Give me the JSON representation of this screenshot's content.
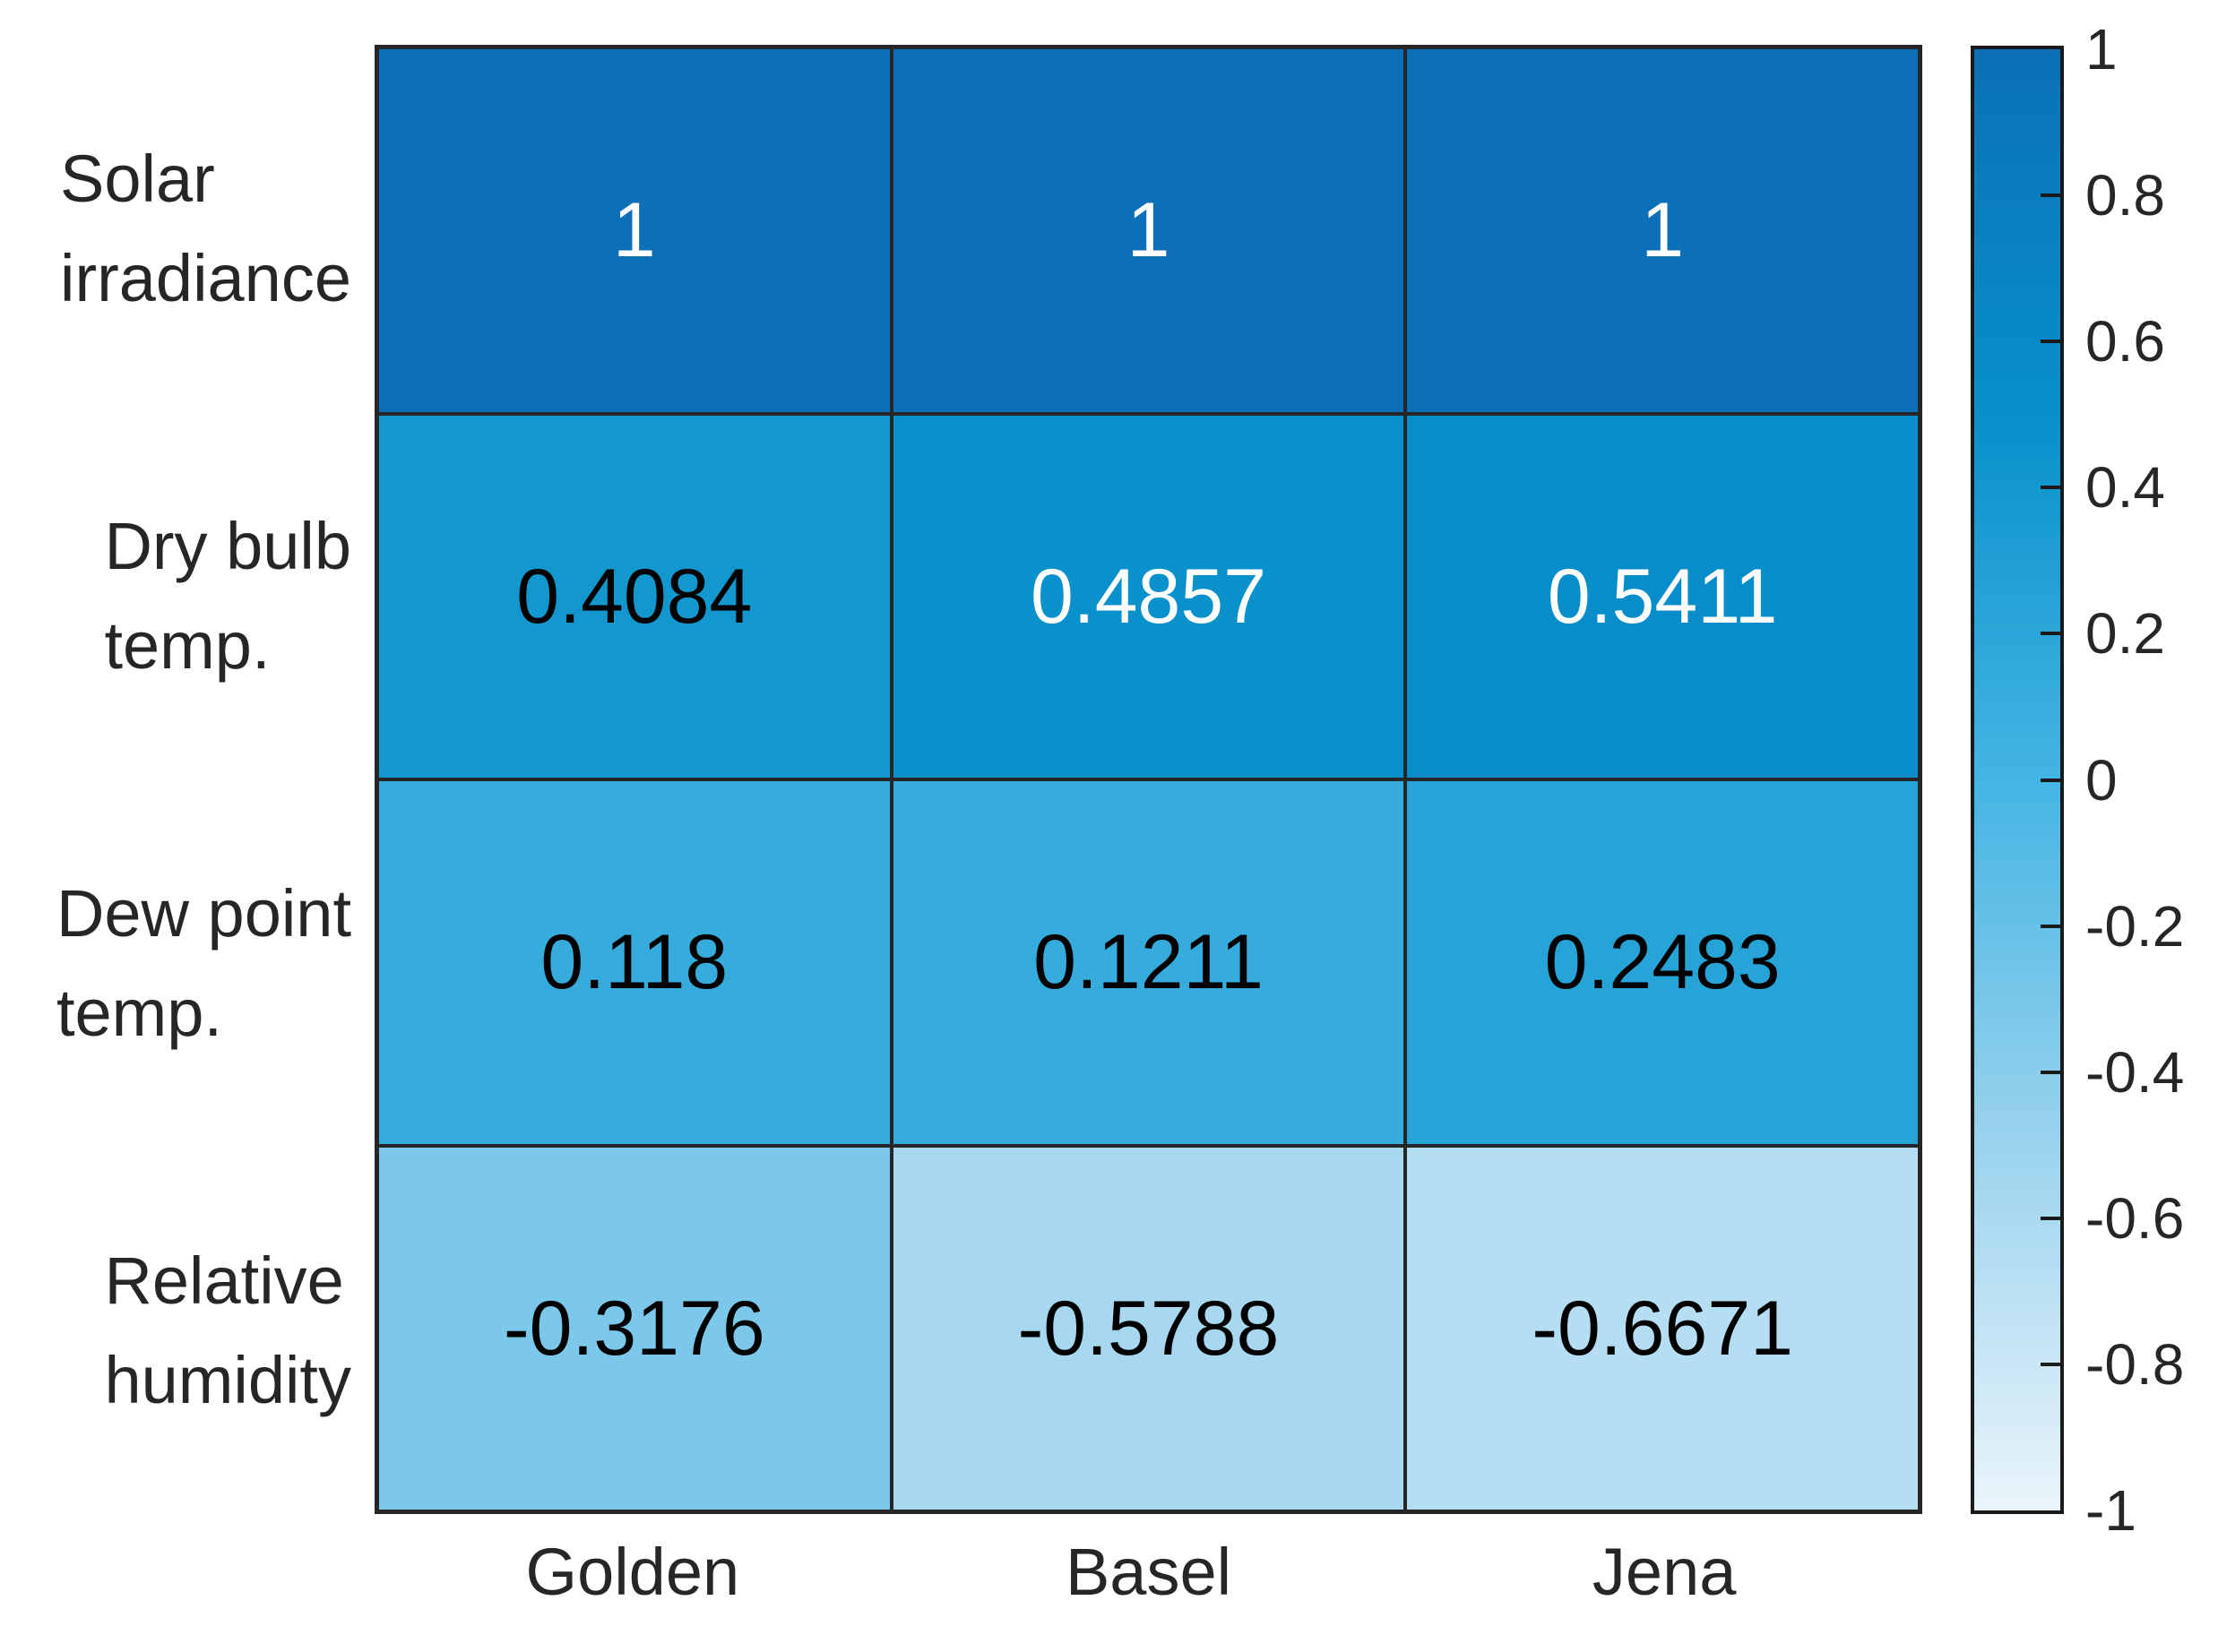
{
  "figure": {
    "background_color": "#ffffff",
    "grid_line_color": "#262626",
    "axis_label_color": "#262626",
    "colorbar_border_color": "#1a1a1a"
  },
  "chart_data": {
    "type": "heatmap",
    "title": "",
    "xlabel": "",
    "ylabel": "",
    "row_labels": [
      [
        "Solar",
        "irradiance"
      ],
      [
        "Dry bulb",
        "temp."
      ],
      [
        "Dew point",
        "temp."
      ],
      [
        "Relative",
        "humidity"
      ]
    ],
    "col_labels": [
      "Golden",
      "Basel",
      "Jena"
    ],
    "values": [
      [
        1,
        1,
        1
      ],
      [
        0.4084,
        0.4857,
        0.5411
      ],
      [
        0.118,
        0.1211,
        0.2483
      ],
      [
        -0.3176,
        -0.5788,
        -0.6671
      ]
    ],
    "values_text": [
      [
        "1",
        "1",
        "1"
      ],
      [
        "0.4084",
        "0.4857",
        "0.5411"
      ],
      [
        "0.118",
        "0.1211",
        "0.2483"
      ],
      [
        "-0.3176",
        "-0.5788",
        "-0.6671"
      ]
    ],
    "cell_text_colors": [
      [
        "#ffffff",
        "#ffffff",
        "#ffffff"
      ],
      [
        "#000000",
        "#ffffff",
        "#ffffff"
      ],
      [
        "#000000",
        "#000000",
        "#000000"
      ],
      [
        "#000000",
        "#000000",
        "#000000"
      ]
    ],
    "colorbar": {
      "min": -1,
      "max": 1,
      "position": "right",
      "tick_values": [
        1,
        0.8,
        0.6,
        0.4,
        0.2,
        0,
        -0.2,
        -0.4,
        -0.6,
        -0.8,
        -1
      ],
      "tick_labels": [
        "1",
        "0.8",
        "0.6",
        "0.4",
        "0.2",
        "0",
        "-0.2",
        "-0.4",
        "-0.6",
        "-0.8",
        "-1"
      ]
    },
    "colormap_stops": [
      {
        "t": 0.0,
        "color": "#EAF4FB"
      },
      {
        "t": 0.25,
        "color": "#9AD3EE"
      },
      {
        "t": 0.5,
        "color": "#44B5E3"
      },
      {
        "t": 0.75,
        "color": "#0790CB"
      },
      {
        "t": 1.0,
        "color": "#0B70B8"
      }
    ],
    "grid_on": true,
    "legend_position": "right-colorbar"
  }
}
